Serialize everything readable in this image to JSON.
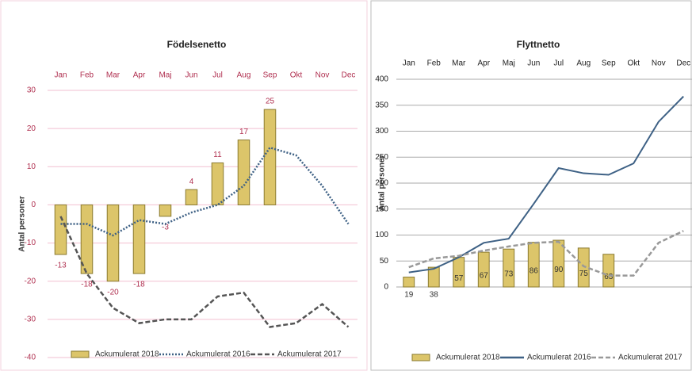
{
  "chart_data": [
    {
      "type": "combo",
      "title": "Födelsenetto",
      "y_label": "Antal personer",
      "categories": [
        "Jan",
        "Feb",
        "Mar",
        "Apr",
        "Maj",
        "Jun",
        "Jul",
        "Aug",
        "Sep",
        "Okt",
        "Nov",
        "Dec"
      ],
      "ylim": [
        -40,
        30
      ],
      "yticks": [
        -40,
        -30,
        -20,
        -10,
        0,
        10,
        20,
        30
      ],
      "grid": true,
      "legend": "bottom",
      "series": [
        {
          "name": "Ackumulerat 2018",
          "type": "bar",
          "color": "#dcc56a",
          "values": [
            -13,
            -18,
            -20,
            -18,
            -3,
            4,
            11,
            17,
            25,
            null,
            null,
            null
          ]
        },
        {
          "name": "Ackumulerat 2016",
          "type": "line",
          "style": "dotted",
          "color": "#3e6185",
          "values": [
            -5,
            -5,
            -8,
            -4,
            -5,
            -2,
            0,
            5,
            15,
            13,
            5,
            -5
          ]
        },
        {
          "name": "Ackumulerat 2017",
          "type": "line",
          "style": "dashed",
          "color": "#555555",
          "values": [
            -3,
            -18,
            -27,
            -31,
            -30,
            -30,
            -24,
            -23,
            -32,
            -31,
            -26,
            -32
          ]
        }
      ]
    },
    {
      "type": "combo",
      "title": "Flyttnetto",
      "y_label": "Antal personer",
      "categories": [
        "Jan",
        "Feb",
        "Mar",
        "Apr",
        "Maj",
        "Jun",
        "Jul",
        "Aug",
        "Sep",
        "Okt",
        "Nov",
        "Dec"
      ],
      "ylim": [
        0,
        400
      ],
      "yticks": [
        0,
        50,
        100,
        150,
        200,
        250,
        300,
        350,
        400
      ],
      "grid": true,
      "legend": "bottom",
      "series": [
        {
          "name": "Ackumulerat 2018",
          "type": "bar",
          "color": "#dcc56a",
          "values": [
            19,
            38,
            57,
            67,
            73,
            86,
            90,
            75,
            63,
            null,
            null,
            null
          ]
        },
        {
          "name": "Ackumulerat 2016",
          "type": "line",
          "style": "solid",
          "color": "#3e6185",
          "values": [
            28,
            35,
            57,
            85,
            93,
            160,
            229,
            219,
            216,
            238,
            318,
            367
          ]
        },
        {
          "name": "Ackumulerat 2017",
          "type": "line",
          "style": "dashed",
          "color": "#999999",
          "values": [
            38,
            55,
            60,
            70,
            78,
            85,
            87,
            40,
            22,
            22,
            85,
            108
          ]
        }
      ]
    }
  ]
}
